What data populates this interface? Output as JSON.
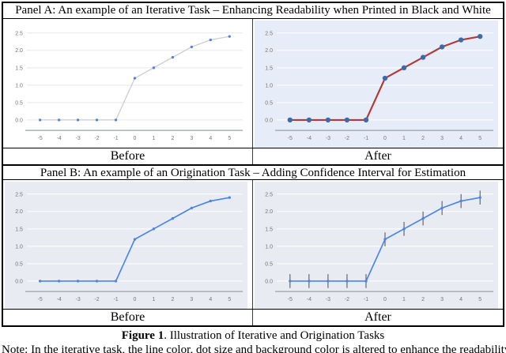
{
  "panel_a": {
    "title": "Panel A: An example of an Iterative Task – Enhancing Readability when Printed in Black and White",
    "before_label": "Before",
    "after_label": "After"
  },
  "panel_b": {
    "title": "Panel B: An example of an Origination Task – Adding Confidence Interval for Estimation",
    "before_label": "Before",
    "after_label": "After"
  },
  "caption": {
    "bold": "Figure 1",
    "rest": ". Illustration of Iterative and Origination Tasks"
  },
  "note": "Note: In the iterative task, the line color, dot size and background color is altered to enhance the readability",
  "colors": {
    "iterative_before_line": "#c9cdd3",
    "iterative_after_line": "#b13a3a",
    "origination_line": "#4a86e8",
    "dot_blue_small": "#4a86e8",
    "dot_blue_large": "#3c6ca8",
    "background_after_a": "#e7edf8",
    "background_panel_b": "#e9ebf2",
    "tick_label_gray": "#757575"
  },
  "chart_data": [
    {
      "id": "panel-a-before",
      "type": "line",
      "title": "",
      "xlabel": "",
      "ylabel": "",
      "x": [
        -5,
        -4,
        -3,
        -2,
        -1,
        0,
        1,
        2,
        3,
        4,
        5
      ],
      "values": [
        0,
        0,
        0,
        0,
        0,
        1.2,
        1.5,
        1.8,
        2.1,
        2.3,
        2.4
      ],
      "x_tick_labels": [
        "-5",
        "-4",
        "-3",
        "-2",
        "-1",
        "0",
        "1",
        "2",
        "3",
        "4",
        "5"
      ],
      "y_ticks": [
        0,
        0.5,
        1,
        1.5,
        2,
        2.5
      ],
      "y_tick_labels": [
        "0.0",
        "0.5",
        "1.0",
        "1.5",
        "2.0",
        "2.5"
      ],
      "ylim": [
        0,
        2.5
      ],
      "grid": true,
      "legend": false,
      "background": "#ffffff",
      "grid_color": "#e8e8e8",
      "line_color": "#c9cdd3",
      "line_width": 1.3,
      "dot_color": "#4a86e8",
      "dot_radius": 1.7,
      "axis_color": "#9aa0a6",
      "tick_color": "#757575",
      "error_bar": null,
      "error_color": null
    },
    {
      "id": "panel-a-after",
      "type": "line",
      "title": "",
      "xlabel": "",
      "ylabel": "",
      "x": [
        -5,
        -4,
        -3,
        -2,
        -1,
        0,
        1,
        2,
        3,
        4,
        5
      ],
      "values": [
        0,
        0,
        0,
        0,
        0,
        1.2,
        1.5,
        1.8,
        2.1,
        2.3,
        2.4
      ],
      "x_tick_labels": [
        "-5",
        "-4",
        "-3",
        "-2",
        "-1",
        "0",
        "1",
        "2",
        "3",
        "4",
        "5"
      ],
      "y_ticks": [
        0,
        0.5,
        1,
        1.5,
        2,
        2.5
      ],
      "y_tick_labels": [
        "0.0",
        "0.5",
        "1.0",
        "1.5",
        "2.0",
        "2.5"
      ],
      "ylim": [
        0,
        2.5
      ],
      "grid": true,
      "legend": false,
      "background": "#e7edf8",
      "grid_color": "#ffffff",
      "line_color": "#b13a3a",
      "line_width": 2.2,
      "dot_color": "#3c6ca8",
      "dot_radius": 3.2,
      "axis_color": "#9aa0a6",
      "tick_color": "#757575",
      "error_bar": null,
      "error_color": null
    },
    {
      "id": "panel-b-before",
      "type": "line",
      "title": "",
      "xlabel": "",
      "ylabel": "",
      "x": [
        -5,
        -4,
        -3,
        -2,
        -1,
        0,
        1,
        2,
        3,
        4,
        5
      ],
      "values": [
        0,
        0,
        0,
        0,
        0,
        1.2,
        1.5,
        1.8,
        2.1,
        2.3,
        2.4
      ],
      "x_tick_labels": [
        "-5",
        "-4",
        "-3",
        "-2",
        "-1",
        "0",
        "1",
        "2",
        "3",
        "4",
        "5"
      ],
      "y_ticks": [
        0,
        0.5,
        1,
        1.5,
        2,
        2.5
      ],
      "y_tick_labels": [
        "0.0",
        "0.5",
        "1.0",
        "1.5",
        "2.0",
        "2.5"
      ],
      "ylim": [
        0,
        2.5
      ],
      "grid": true,
      "legend": false,
      "background": "#e9ebf2",
      "grid_color": "#ffffff",
      "line_color": "#4a86e8",
      "line_width": 1.7,
      "dot_color": "#4a86e8",
      "dot_radius": 1.7,
      "axis_color": "#9aa0a6",
      "tick_color": "#757575",
      "error_bar": null,
      "error_color": null
    },
    {
      "id": "panel-b-after",
      "type": "line",
      "title": "",
      "xlabel": "",
      "ylabel": "",
      "x": [
        -5,
        -4,
        -3,
        -2,
        -1,
        0,
        1,
        2,
        3,
        4,
        5
      ],
      "values": [
        0,
        0,
        0,
        0,
        0,
        1.2,
        1.5,
        1.8,
        2.1,
        2.3,
        2.4
      ],
      "x_tick_labels": [
        "-5",
        "-4",
        "-3",
        "-2",
        "-1",
        "0",
        "1",
        "2",
        "3",
        "4",
        "5"
      ],
      "y_ticks": [
        0,
        0.5,
        1,
        1.5,
        2,
        2.5
      ],
      "y_tick_labels": [
        "0.0",
        "0.5",
        "1.0",
        "1.5",
        "2.0",
        "2.5"
      ],
      "ylim": [
        0,
        2.5
      ],
      "grid": true,
      "legend": false,
      "background": "#e9ebf2",
      "grid_color": "#ffffff",
      "line_color": "#4a86e8",
      "line_width": 1.7,
      "dot_color": "#4a86e8",
      "dot_radius": 1.7,
      "axis_color": "#9aa0a6",
      "tick_color": "#757575",
      "error_bar": 0.2,
      "error_color": "#4d4d4d"
    }
  ]
}
